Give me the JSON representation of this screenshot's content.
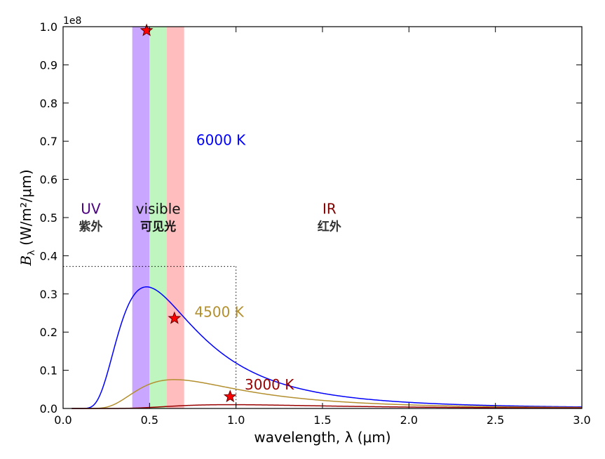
{
  "chart_data": {
    "type": "line",
    "title": "",
    "xlabel": "wavelength, λ (μm)",
    "ylabel": "B",
    "ylabel_sub": "λ",
    "ylabel_units": "(W/m²/μm)",
    "y_offset_label": "1e8",
    "xlim": [
      0.0,
      3.0
    ],
    "ylim": [
      0.0,
      1.0
    ],
    "y_scale_factor": 100000000,
    "xticks": [
      0.0,
      0.5,
      1.0,
      1.5,
      2.0,
      2.5,
      3.0
    ],
    "xtick_labels": [
      "0.0",
      "0.5",
      "1.0",
      "1.5",
      "2.0",
      "2.5",
      "3.0"
    ],
    "yticks": [
      0.0,
      0.1,
      0.2,
      0.3,
      0.4,
      0.5,
      0.6,
      0.7,
      0.8,
      0.9,
      1.0
    ],
    "ytick_labels": [
      "0.0",
      "0.1",
      "0.2",
      "0.3",
      "0.4",
      "0.5",
      "0.6",
      "0.7",
      "0.8",
      "0.9",
      "1.0"
    ],
    "grid": false,
    "bands": [
      {
        "x0": 0.4,
        "x1": 0.5,
        "color": "#c9a6ff"
      },
      {
        "x0": 0.5,
        "x1": 0.6,
        "color": "#bff5bf"
      },
      {
        "x0": 0.6,
        "x1": 0.7,
        "color": "#ffbdbd"
      }
    ],
    "region_labels": [
      {
        "text": "UV",
        "sub": "紫外",
        "x": 0.16,
        "y": 0.51,
        "color": "#4b0082",
        "sub_color": "#333333"
      },
      {
        "text": "visible",
        "sub": "可见光",
        "x": 0.55,
        "y": 0.51,
        "color": "#111111",
        "sub_color": "#111111"
      },
      {
        "text": "IR",
        "sub": "红外",
        "x": 1.54,
        "y": 0.51,
        "color": "#800000",
        "sub_color": "#333333"
      }
    ],
    "series": [
      {
        "name": "6000 K",
        "temperature": 6000,
        "color": "#0000ff",
        "peak": {
          "x": 0.483,
          "y": 0.99
        },
        "label_pos": {
          "x": 0.77,
          "y": 0.69
        }
      },
      {
        "name": "4500 K",
        "temperature": 4500,
        "color": "#b38f2e",
        "peak": {
          "x": 0.644,
          "y": 0.236
        },
        "label_pos": {
          "x": 0.76,
          "y": 0.24
        }
      },
      {
        "name": "3000 K",
        "temperature": 3000,
        "color": "#990000",
        "peak": {
          "x": 0.966,
          "y": 0.031
        },
        "label_pos": {
          "x": 1.05,
          "y": 0.05
        }
      }
    ],
    "reference_lines": {
      "x": 1.0,
      "y": 0.372,
      "style": "dotted"
    },
    "marker": {
      "shape": "star",
      "fill": "#ff0000",
      "stroke": "#660000"
    }
  }
}
